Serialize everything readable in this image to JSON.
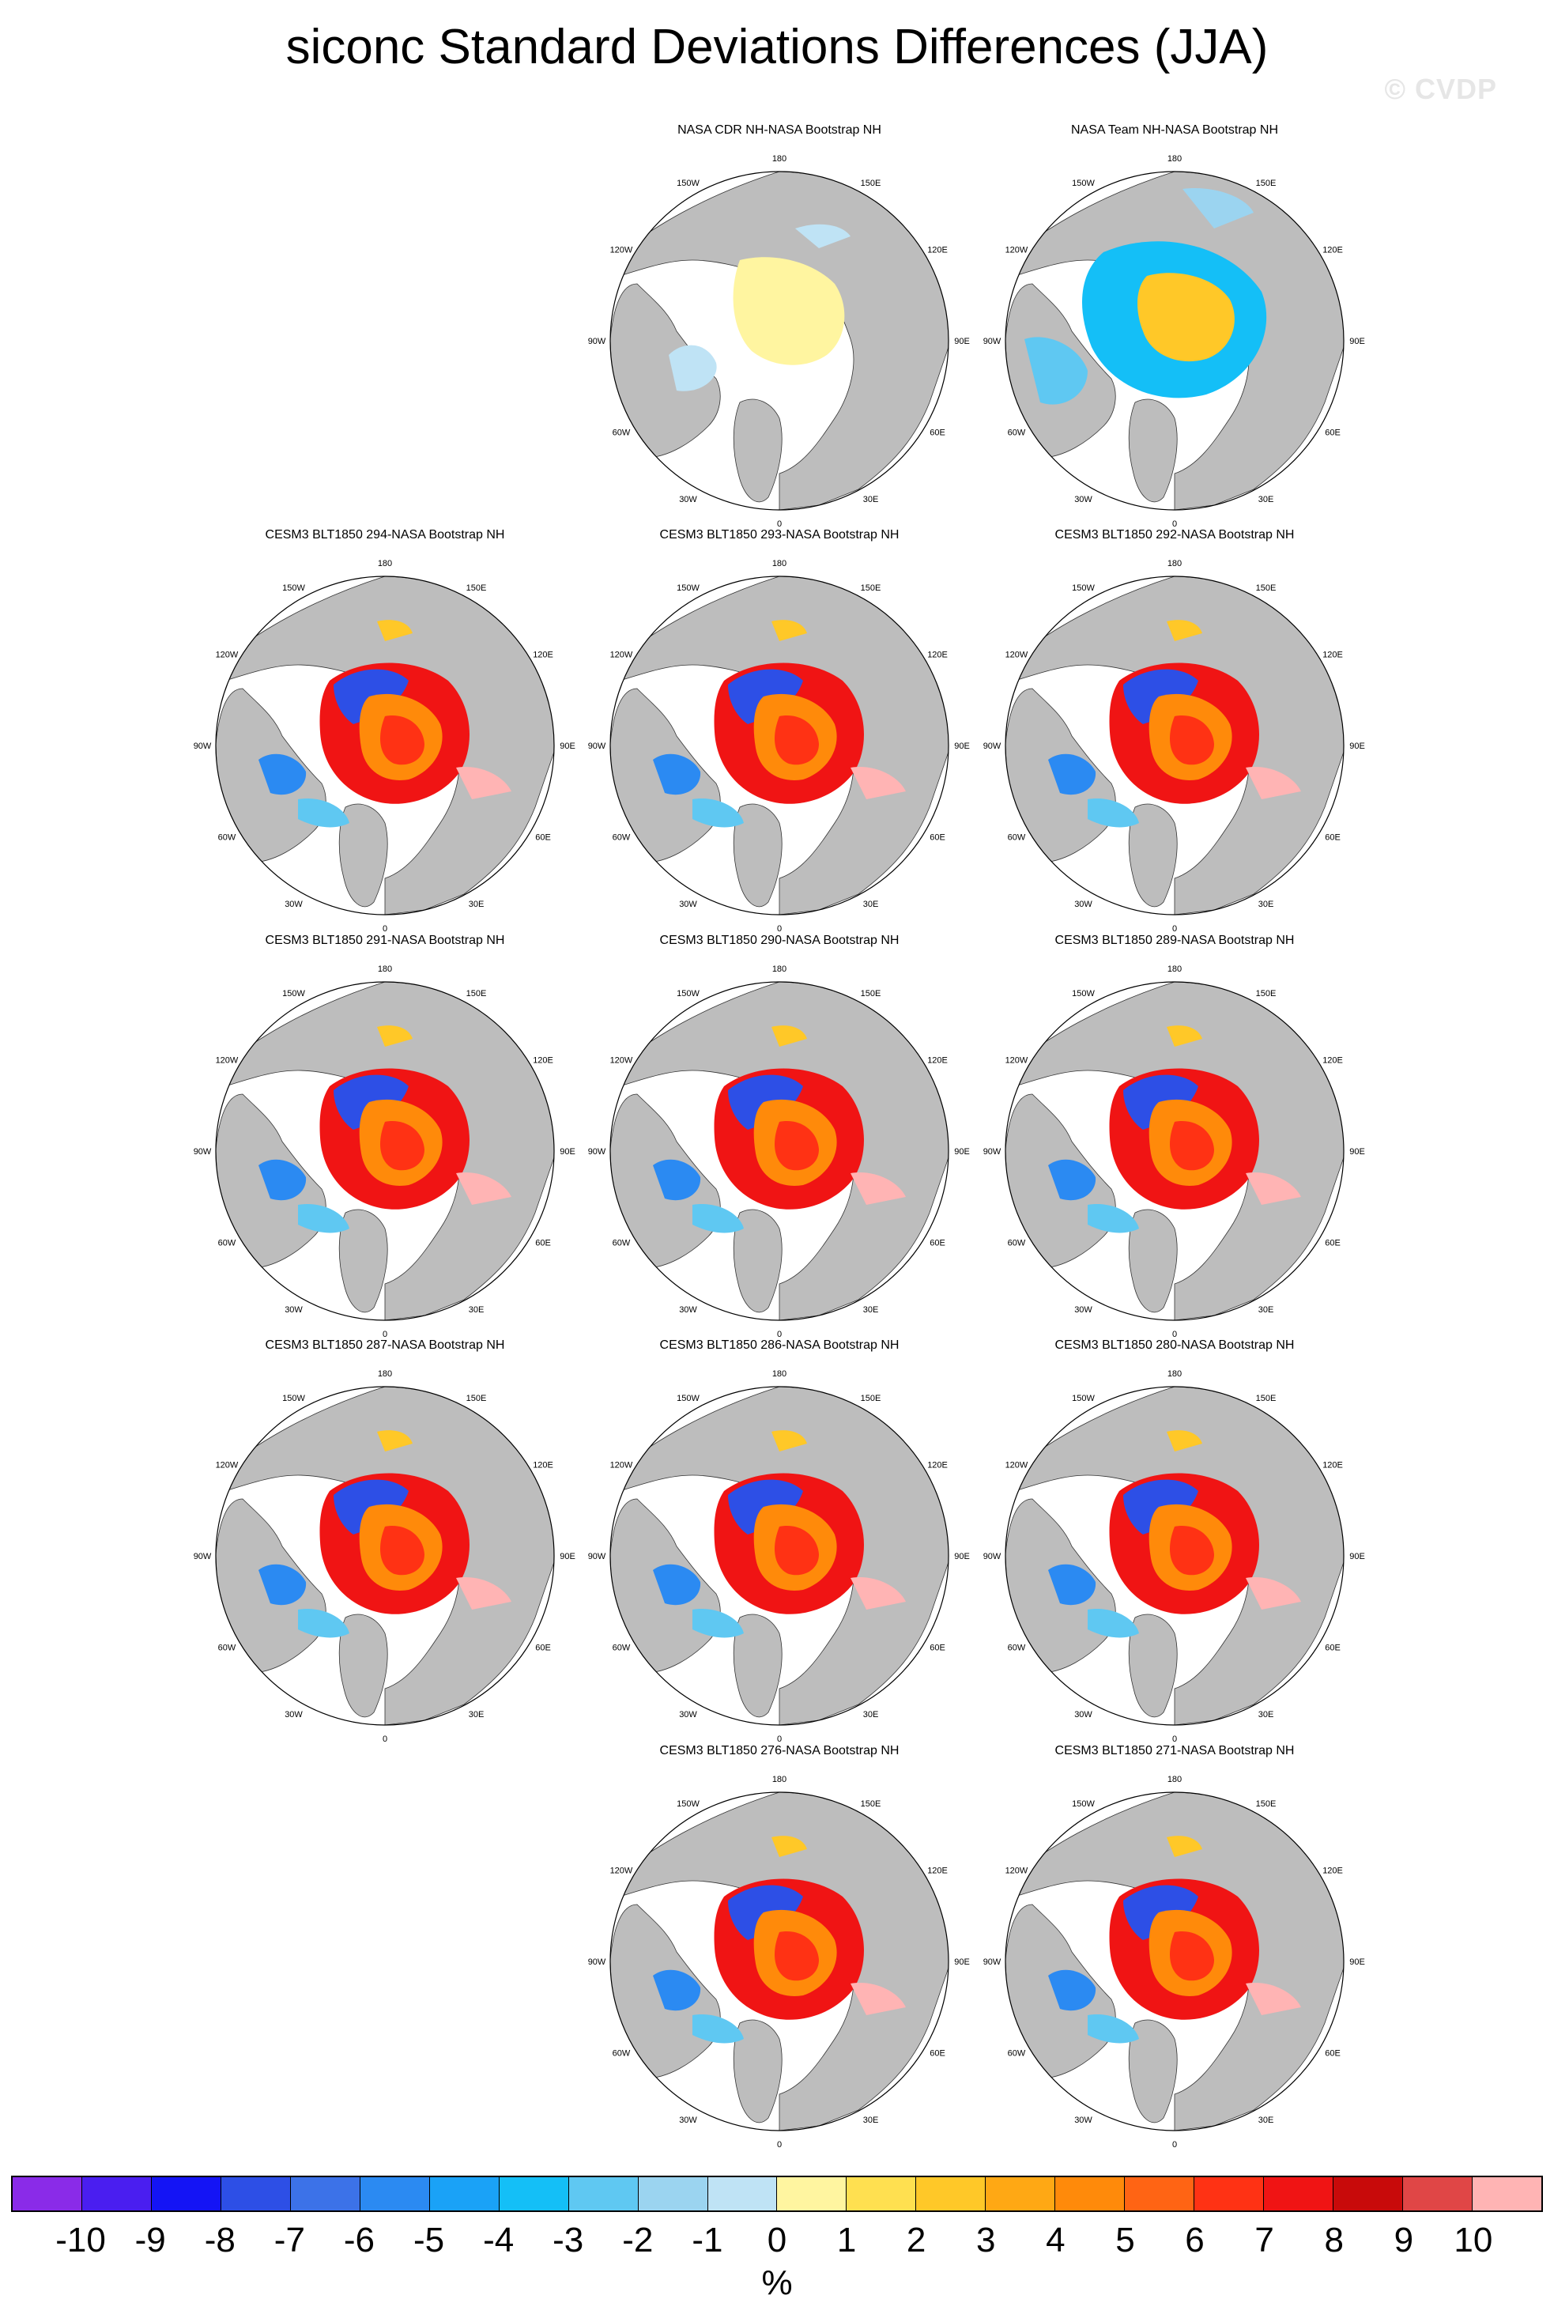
{
  "title": "siconc Standard Deviations Differences (JJA)",
  "watermark": "© CVDP",
  "lon_labels": [
    "180",
    "150E",
    "120E",
    "90E",
    "60E",
    "30E",
    "0",
    "30W",
    "60W",
    "90W",
    "120W",
    "150W"
  ],
  "panels": [
    {
      "title": "NASA CDR NH-NASA Bootstrap NH",
      "row": 0,
      "col": 1,
      "style": "obs1"
    },
    {
      "title": "NASA Team NH-NASA Bootstrap NH",
      "row": 0,
      "col": 2,
      "style": "obs2"
    },
    {
      "title": "CESM3 BLT1850 294-NASA Bootstrap NH",
      "row": 1,
      "col": 0,
      "style": "model"
    },
    {
      "title": "CESM3 BLT1850 293-NASA Bootstrap NH",
      "row": 1,
      "col": 1,
      "style": "model"
    },
    {
      "title": "CESM3 BLT1850 292-NASA Bootstrap NH",
      "row": 1,
      "col": 2,
      "style": "model"
    },
    {
      "title": "CESM3 BLT1850 291-NASA Bootstrap NH",
      "row": 2,
      "col": 0,
      "style": "model"
    },
    {
      "title": "CESM3 BLT1850 290-NASA Bootstrap NH",
      "row": 2,
      "col": 1,
      "style": "model"
    },
    {
      "title": "CESM3 BLT1850 289-NASA Bootstrap NH",
      "row": 2,
      "col": 2,
      "style": "model"
    },
    {
      "title": "CESM3 BLT1850 287-NASA Bootstrap NH",
      "row": 3,
      "col": 0,
      "style": "model"
    },
    {
      "title": "CESM3 BLT1850 286-NASA Bootstrap NH",
      "row": 3,
      "col": 1,
      "style": "model"
    },
    {
      "title": "CESM3 BLT1850 280-NASA Bootstrap NH",
      "row": 3,
      "col": 2,
      "style": "model"
    },
    {
      "title": "CESM3 BLT1850 276-NASA Bootstrap NH",
      "row": 4,
      "col": 1,
      "style": "model"
    },
    {
      "title": "CESM3 BLT1850 271-NASA Bootstrap NH",
      "row": 4,
      "col": 2,
      "style": "model"
    }
  ],
  "colorbar": {
    "units": "%",
    "labels": [
      "-10",
      "-9",
      "-8",
      "-7",
      "-6",
      "-5",
      "-4",
      "-3",
      "-2",
      "-1",
      "0",
      "1",
      "2",
      "3",
      "4",
      "5",
      "6",
      "7",
      "8",
      "9",
      "10"
    ],
    "colors": [
      "#8a2be8",
      "#4a1ef0",
      "#1414f5",
      "#2d4fe6",
      "#3c72e8",
      "#2b8af2",
      "#1aa2f7",
      "#14bff7",
      "#5fc8f2",
      "#9bd4f0",
      "#bfe3f5",
      "#fff5a0",
      "#ffe050",
      "#ffc828",
      "#ffa814",
      "#ff8a0a",
      "#ff6414",
      "#ff3214",
      "#f01414",
      "#c80a0a",
      "#e04646",
      "#ffb4b4"
    ]
  },
  "land_color": "#bdbdbd"
}
